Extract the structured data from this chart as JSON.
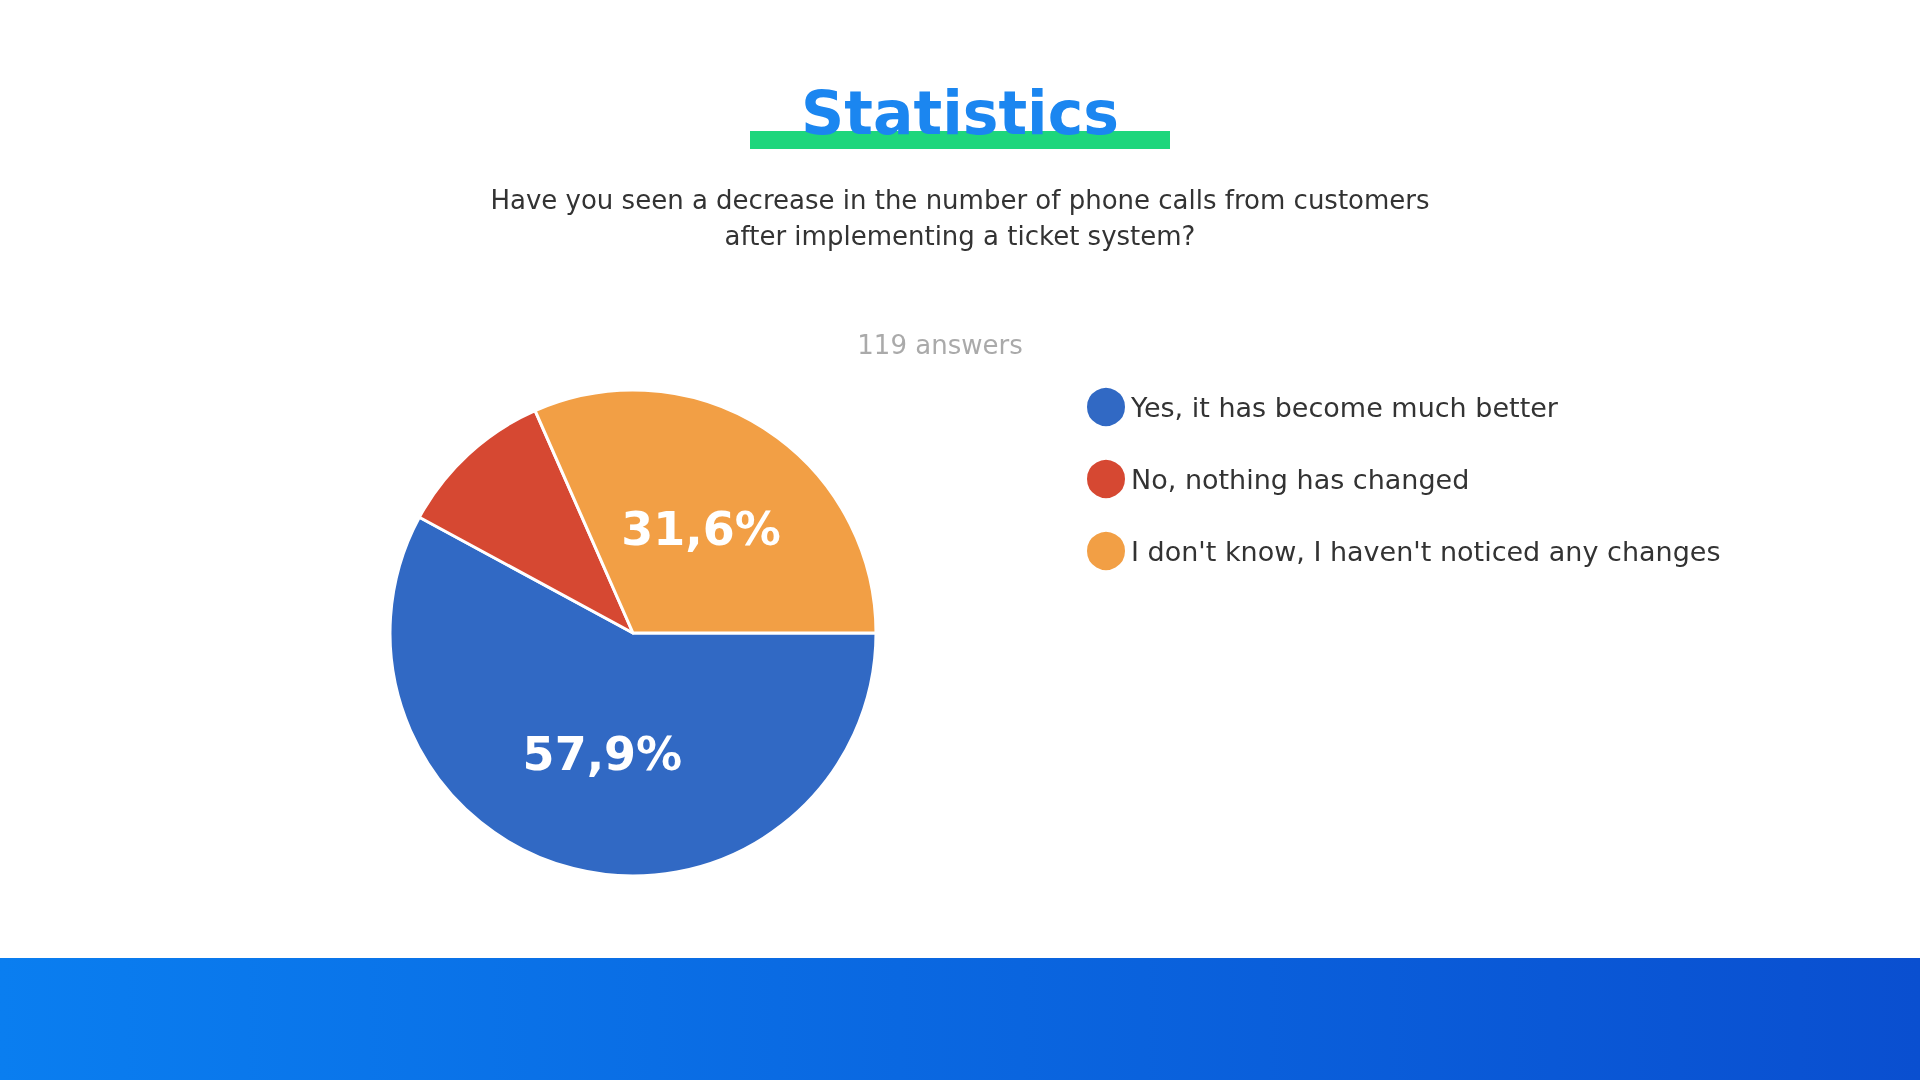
{
  "chart_data": {
    "type": "pie",
    "title": "Statistics",
    "subtitle": "Have you seen a decrease in the number of phone calls from customers after implementing a ticket system?",
    "annotations": [
      "119 answers"
    ],
    "categories": [
      "Yes, it has become much better",
      "No, nothing has changed",
      "I don't know, I haven't noticed any changes"
    ],
    "values": [
      57.9,
      10.5,
      31.6
    ],
    "colors": [
      "#3169c4",
      "#d64832",
      "#f29f45"
    ],
    "value_labels": [
      "57,9%",
      null,
      "31,6%"
    ],
    "legend": "right"
  }
}
